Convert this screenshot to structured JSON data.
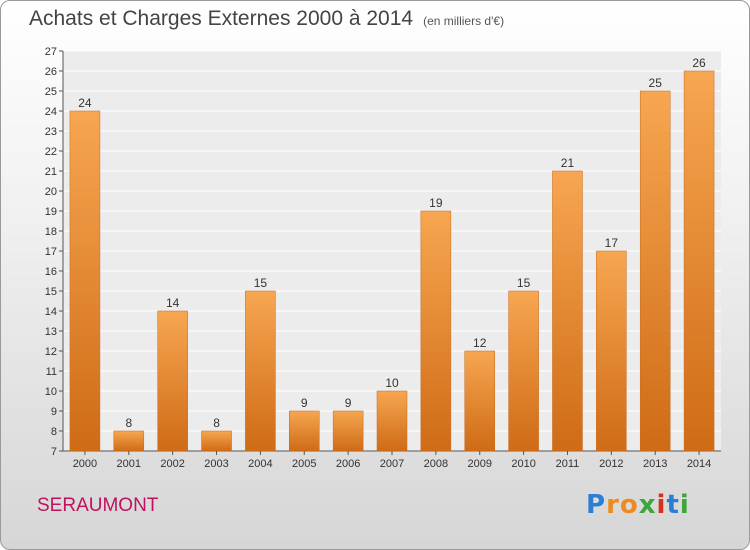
{
  "title": "Achats et Charges Externes 2000 à 2014",
  "unit": "(en milliers d'€)",
  "commune": "SERAUMONT",
  "logo": {
    "letters": [
      "P",
      "r",
      "o",
      "x",
      "i",
      "t",
      "i"
    ],
    "colors": [
      "#2a7fd4",
      "#f08a1c",
      "#f08a1c",
      "#3da63a",
      "#d8301e",
      "#2a7fd4",
      "#3da63a"
    ]
  },
  "colors": {
    "bar_top": "#f7a651",
    "bar_bottom": "#cf6b16",
    "title": "#444444",
    "commune": "#c0125e"
  },
  "chart_data": {
    "type": "bar",
    "categories": [
      "2000",
      "2001",
      "2002",
      "2003",
      "2004",
      "2005",
      "2006",
      "2007",
      "2008",
      "2009",
      "2010",
      "2011",
      "2012",
      "2013",
      "2014"
    ],
    "values": [
      24,
      8,
      14,
      8,
      15,
      9,
      9,
      10,
      19,
      12,
      15,
      21,
      17,
      25,
      26
    ],
    "ylim": [
      7,
      27
    ],
    "yticks": [
      7,
      8,
      9,
      10,
      11,
      12,
      13,
      14,
      15,
      16,
      17,
      18,
      19,
      20,
      21,
      22,
      23,
      24,
      25,
      26,
      27
    ],
    "grid": true
  }
}
